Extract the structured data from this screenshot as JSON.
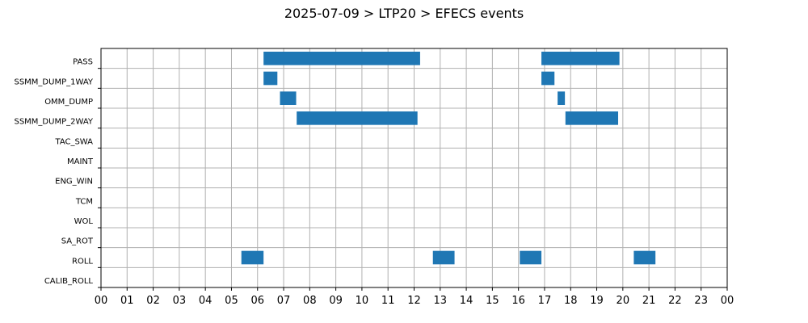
{
  "chart_data": {
    "type": "bar",
    "orientation": "horizontal-timeline",
    "title": "2025-07-09 > LTP20 > EFECS events",
    "xlabel": "",
    "ylabel": "",
    "x_tick_labels": [
      "00",
      "01",
      "02",
      "03",
      "04",
      "05",
      "06",
      "07",
      "08",
      "09",
      "10",
      "11",
      "12",
      "13",
      "14",
      "15",
      "16",
      "17",
      "18",
      "19",
      "20",
      "21",
      "22",
      "23",
      "00"
    ],
    "xlim_hours": [
      0,
      24
    ],
    "grid": true,
    "bar_color": "#1f77b4",
    "categories": [
      "PASS",
      "SSMM_DUMP_1WAY",
      "OMM_DUMP",
      "SSMM_DUMP_2WAY",
      "TAC_SWA",
      "MAINT",
      "ENG_WIN",
      "TCM",
      "WOL",
      "SA_ROT",
      "ROLL",
      "CALIB_ROLL"
    ],
    "events": [
      {
        "category": "PASS",
        "start": 6.23,
        "end": 12.23
      },
      {
        "category": "PASS",
        "start": 16.88,
        "end": 19.87
      },
      {
        "category": "SSMM_DUMP_1WAY",
        "start": 6.23,
        "end": 6.76
      },
      {
        "category": "SSMM_DUMP_1WAY",
        "start": 16.88,
        "end": 17.38
      },
      {
        "category": "OMM_DUMP",
        "start": 6.86,
        "end": 7.48
      },
      {
        "category": "OMM_DUMP",
        "start": 17.5,
        "end": 17.78
      },
      {
        "category": "SSMM_DUMP_2WAY",
        "start": 7.5,
        "end": 12.13
      },
      {
        "category": "SSMM_DUMP_2WAY",
        "start": 17.8,
        "end": 19.82
      },
      {
        "category": "ROLL",
        "start": 5.38,
        "end": 6.23
      },
      {
        "category": "ROLL",
        "start": 12.72,
        "end": 13.55
      },
      {
        "category": "ROLL",
        "start": 16.05,
        "end": 16.88
      },
      {
        "category": "ROLL",
        "start": 20.42,
        "end": 21.25
      }
    ]
  }
}
